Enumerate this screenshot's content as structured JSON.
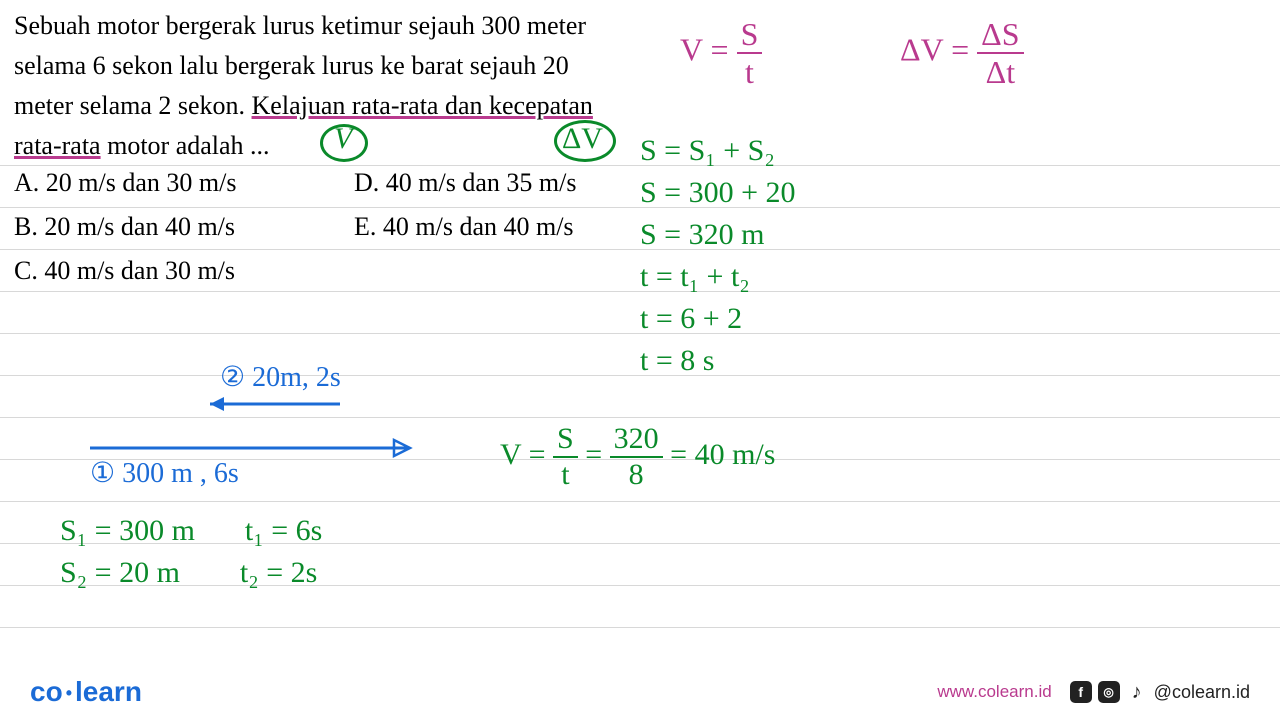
{
  "question": {
    "line1": "Sebuah motor bergerak lurus ketimur sejauh 300 meter",
    "line2": "selama 6 sekon lalu bergerak lurus ke barat sejauh 20",
    "line3_a": "meter selama 2 sekon. ",
    "line3_b": "Kelajuan rata-rata dan kecepatan",
    "line4_a": "rata-rata",
    "line4_b": " motor adalah ..."
  },
  "options": {
    "A": "A. 20 m/s dan 30 m/s",
    "B": "B. 20 m/s dan 40 m/s",
    "C": "C. 40 m/s dan 30 m/s",
    "D": "D. 40 m/s dan 35 m/s",
    "E": "E. 40 m/s dan 40 m/s"
  },
  "annotations": {
    "V": "V",
    "dV": "ΔV"
  },
  "formulas": {
    "v_eq": "V =",
    "v_num": "S",
    "v_den": "t",
    "dv_eq": "ΔV =",
    "dv_num": "ΔS",
    "dv_den": "Δt"
  },
  "work_s": {
    "l1": "S = S₁ + S₂",
    "l2": "S = 300 + 20",
    "l3": "S = 320 m",
    "l4": "t = t₁ + t₂",
    "l5": "t = 6 + 2",
    "l6": "t = 8 s"
  },
  "work_v": {
    "pre": "V = ",
    "num1": "S",
    "den1": "t",
    "eq": " = ",
    "num2": "320",
    "den2": "8",
    "res": " = 40 m/s"
  },
  "diagram": {
    "label2": "② 20m, 2s",
    "label1": "① 300 m , 6s"
  },
  "givens": {
    "s1": "S₁ = 300 m",
    "s2": "S₂ = 20 m",
    "t1": "t₁ = 6s",
    "t2": "t₂ = 2s"
  },
  "footer": {
    "logo_co": "co",
    "logo_learn": "learn",
    "url": "www.colearn.id",
    "handle": "@colearn.id"
  },
  "style": {
    "ruled_line_positions": [
      165,
      207,
      249,
      291,
      333,
      375,
      417,
      459,
      501,
      543,
      585,
      627
    ],
    "colors": {
      "green": "#0a8a2a",
      "purple": "#b93a8e",
      "blue": "#1b6bd6",
      "text": "#000000",
      "rule": "#d8d8d8"
    }
  }
}
